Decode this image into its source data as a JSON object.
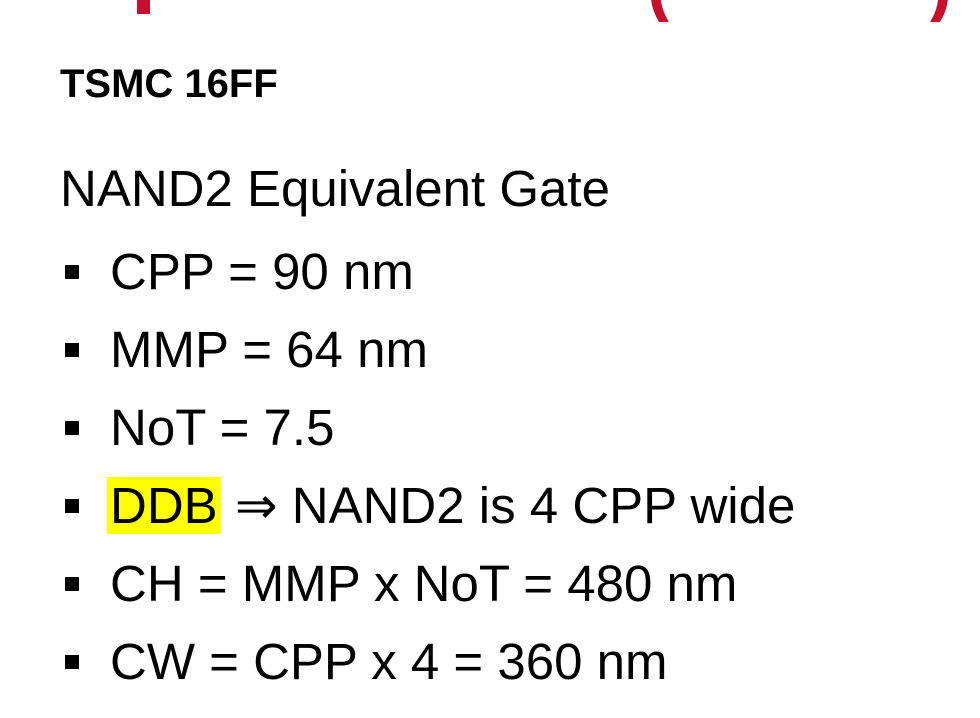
{
  "slide": {
    "subtitle": "TSMC 16FF",
    "heading": "NAND2 Equivalent Gate",
    "bullets": [
      {
        "text": "CPP = 90 nm"
      },
      {
        "text": "MMP = 64 nm"
      },
      {
        "text": "NoT = 7.5"
      },
      {
        "highlight": "DDB",
        "rest": " ⇒ NAND2 is 4 CPP wide"
      },
      {
        "text": "CH = MMP x NoT = 480 nm"
      },
      {
        "text": "CW = CPP x 4 = 360 nm"
      }
    ],
    "title_left_paren": "(",
    "title_right_paren": ")"
  },
  "colors": {
    "title_red": "#c8102e",
    "highlight_yellow": "#ffff00",
    "text": "#000000",
    "background": "#ffffff"
  }
}
